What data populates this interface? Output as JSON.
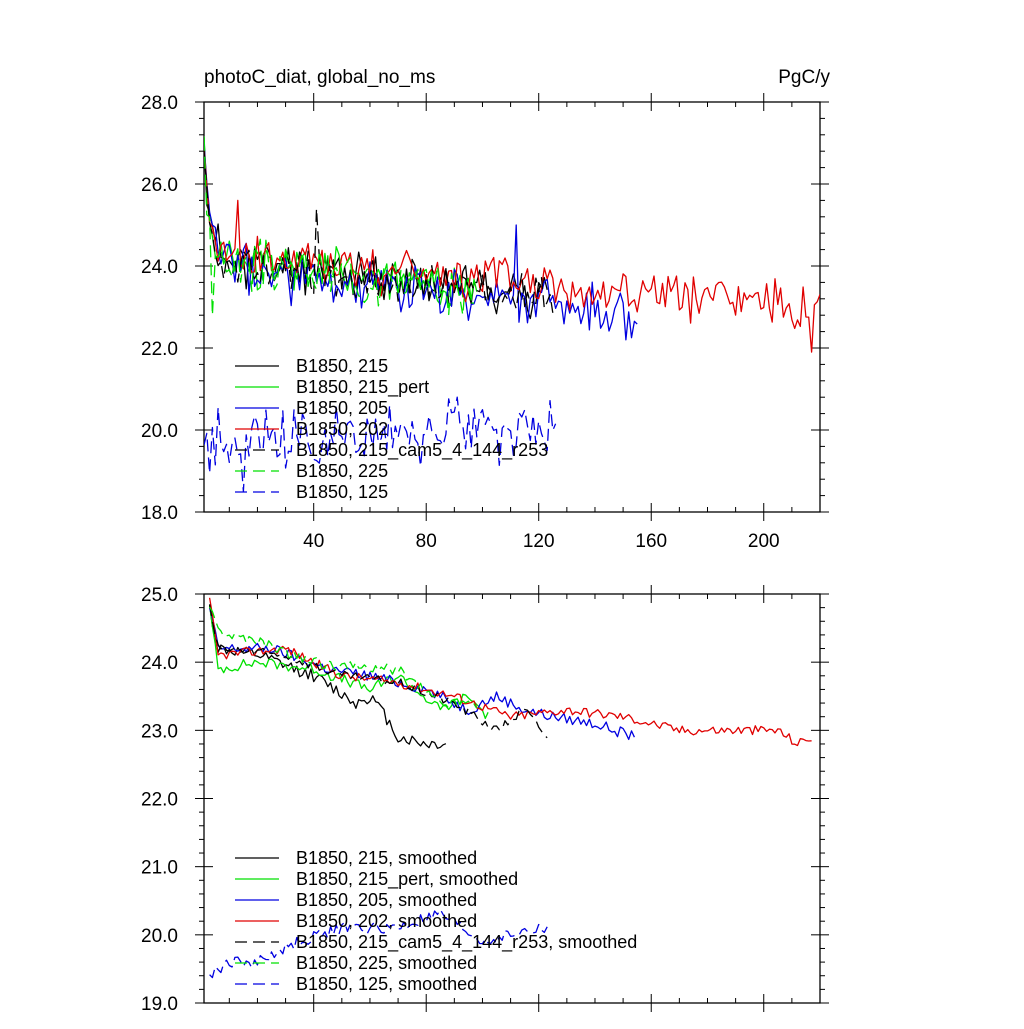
{
  "figure": {
    "title": "photoC_diat, global_no_ms",
    "units": "PgC/y"
  },
  "series_styles": [
    {
      "key": "b215",
      "color": "#000000",
      "dash": "solid"
    },
    {
      "key": "b215pert",
      "color": "#00e000",
      "dash": "solid"
    },
    {
      "key": "b205",
      "color": "#0000e0",
      "dash": "solid"
    },
    {
      "key": "b202",
      "color": "#e00000",
      "dash": "solid"
    },
    {
      "key": "b215cam",
      "color": "#000000",
      "dash": "dashed"
    },
    {
      "key": "b225",
      "color": "#00e000",
      "dash": "dashed"
    },
    {
      "key": "b125",
      "color": "#0000e0",
      "dash": "dashed"
    }
  ],
  "chart_data": [
    {
      "type": "line",
      "title": "photoC_diat, global_no_ms",
      "units": "PgC/y",
      "xlim": [
        1,
        220
      ],
      "ylim": [
        18.0,
        28.0
      ],
      "xticks": [
        40,
        80,
        120,
        160,
        200
      ],
      "xtick_labels": [
        "40",
        "80",
        "120",
        "160",
        "200"
      ],
      "yticks": [
        18.0,
        20.0,
        22.0,
        24.0,
        26.0,
        28.0
      ],
      "ytick_labels": [
        "18.0",
        "20.0",
        "22.0",
        "24.0",
        "26.0",
        "28.0"
      ],
      "series": [
        {
          "name": "B1850, 215",
          "key": "b215",
          "color": "#000000",
          "dash": "solid",
          "kind": "annual",
          "x_range": [
            1,
            123
          ],
          "start": 27.0,
          "plateau": 24.2,
          "end": 23.3,
          "decay": 2.2,
          "noise": 0.45,
          "seed": 11
        },
        {
          "name": "B1850, 215_pert",
          "key": "b215pert",
          "color": "#00e000",
          "dash": "solid",
          "kind": "annual",
          "x_range": [
            1,
            98
          ],
          "start": 26.6,
          "plateau": 24.1,
          "end": 23.6,
          "decay": 2.0,
          "noise": 0.45,
          "seed": 23
        },
        {
          "name": "B1850, 205",
          "key": "b205",
          "color": "#0000e0",
          "dash": "solid",
          "kind": "annual",
          "x_range": [
            1,
            155
          ],
          "start": 26.5,
          "plateau": 24.0,
          "end": 22.9,
          "decay": 2.3,
          "noise": 0.5,
          "seed": 37,
          "spikes": [
            [
              112,
              25.0
            ],
            [
              151,
              22.2
            ]
          ]
        },
        {
          "name": "B1850, 202",
          "key": "b202",
          "color": "#e00000",
          "dash": "solid",
          "kind": "annual",
          "x_range": [
            1,
            220
          ],
          "start": 26.8,
          "plateau": 24.3,
          "end": 22.9,
          "decay": 2.1,
          "noise": 0.45,
          "seed": 41,
          "spikes": [
            [
              13,
              25.6
            ],
            [
              217,
              21.9
            ]
          ]
        },
        {
          "name": "B1850, 215_cam5_4_144_r253",
          "key": "b215cam",
          "color": "#000000",
          "dash": "dashed",
          "kind": "annual",
          "x_range": [
            1,
            125
          ],
          "start": 27.0,
          "plateau": 24.1,
          "end": 23.2,
          "decay": 2.0,
          "noise": 0.4,
          "seed": 53,
          "spikes": [
            [
              41,
              25.4
            ]
          ]
        },
        {
          "name": "B1850, 225",
          "key": "b225",
          "color": "#00e000",
          "dash": "dashed",
          "kind": "annual",
          "x_range": [
            1,
            97
          ],
          "start": 26.7,
          "plateau": 24.2,
          "end": 23.4,
          "decay": 2.0,
          "noise": 0.45,
          "seed": 67,
          "spikes": [
            [
              4,
              22.8
            ]
          ]
        },
        {
          "name": "B1850, 125",
          "key": "b125",
          "color": "#0000e0",
          "dash": "dashed",
          "kind": "annual",
          "x_range": [
            1,
            126
          ],
          "start": 19.5,
          "plateau": 19.7,
          "end": 20.1,
          "decay": 1.0,
          "noise": 0.6,
          "seed": 79,
          "spikes": [
            [
              15,
              18.5
            ]
          ]
        }
      ]
    },
    {
      "type": "line",
      "title": "",
      "units": "PgC/y",
      "xlim": [
        1,
        220
      ],
      "ylim": [
        19.0,
        25.0
      ],
      "xticks": [
        40,
        80,
        120,
        160,
        200
      ],
      "xtick_labels": [
        "",
        "",
        "",
        "",
        ""
      ],
      "yticks": [
        19.0,
        20.0,
        21.0,
        22.0,
        23.0,
        24.0,
        25.0
      ],
      "ytick_labels": [
        "19.0",
        "20.0",
        "21.0",
        "22.0",
        "23.0",
        "24.0",
        "25.0"
      ],
      "series": [
        {
          "name": "B1850, 215, smoothed",
          "key": "b215",
          "color": "#000000",
          "dash": "solid",
          "kind": "smoothed",
          "x_range": [
            3,
            87
          ],
          "start": 24.8,
          "plateau": 24.1,
          "end": 22.8,
          "decay": 2.0,
          "noise": 0.09,
          "seed": 12,
          "waypoints": [
            [
              3,
              24.8
            ],
            [
              6,
              24.2
            ],
            [
              20,
              24.1
            ],
            [
              40,
              23.8
            ],
            [
              55,
              23.4
            ],
            [
              60,
              23.5
            ],
            [
              64,
              23.3
            ],
            [
              70,
              22.9
            ],
            [
              80,
              22.8
            ],
            [
              87,
              22.8
            ]
          ]
        },
        {
          "name": "B1850, 215_pert, smoothed",
          "key": "b215pert",
          "color": "#00e000",
          "dash": "solid",
          "kind": "smoothed",
          "x_range": [
            3,
            102
          ],
          "start": 24.8,
          "plateau": 24.0,
          "end": 23.2,
          "decay": 2.0,
          "noise": 0.08,
          "seed": 24,
          "waypoints": [
            [
              3,
              24.8
            ],
            [
              6,
              23.9
            ],
            [
              20,
              24.0
            ],
            [
              40,
              23.9
            ],
            [
              60,
              23.6
            ],
            [
              70,
              23.8
            ],
            [
              85,
              23.3
            ],
            [
              95,
              23.5
            ],
            [
              102,
              23.2
            ]
          ]
        },
        {
          "name": "B1850, 205, smoothed",
          "key": "b205",
          "color": "#0000e0",
          "dash": "solid",
          "kind": "smoothed",
          "x_range": [
            3,
            154
          ],
          "start": 24.8,
          "plateau": 24.2,
          "end": 22.9,
          "decay": 2.0,
          "noise": 0.08,
          "seed": 38,
          "waypoints": [
            [
              3,
              24.8
            ],
            [
              6,
              24.2
            ],
            [
              25,
              24.2
            ],
            [
              45,
              23.9
            ],
            [
              60,
              23.8
            ],
            [
              80,
              23.6
            ],
            [
              95,
              23.3
            ],
            [
              105,
              23.5
            ],
            [
              115,
              23.3
            ],
            [
              125,
              23.2
            ],
            [
              140,
              23.1
            ],
            [
              154,
              22.9
            ]
          ]
        },
        {
          "name": "B1850, 202, smoothed",
          "key": "b202",
          "color": "#e00000",
          "dash": "solid",
          "kind": "smoothed",
          "x_range": [
            3,
            217
          ],
          "start": 24.9,
          "plateau": 24.2,
          "end": 22.9,
          "decay": 2.0,
          "noise": 0.07,
          "seed": 42,
          "waypoints": [
            [
              3,
              24.9
            ],
            [
              6,
              24.1
            ],
            [
              30,
              24.2
            ],
            [
              50,
              23.8
            ],
            [
              70,
              23.7
            ],
            [
              90,
              23.5
            ],
            [
              110,
              23.2
            ],
            [
              130,
              23.3
            ],
            [
              150,
              23.2
            ],
            [
              170,
              23.0
            ],
            [
              190,
              23.0
            ],
            [
              205,
              23.0
            ],
            [
              212,
              22.8
            ],
            [
              217,
              22.9
            ]
          ]
        },
        {
          "name": "B1850, 215_cam5_4_144_r253, smoothed",
          "key": "b215cam",
          "color": "#000000",
          "dash": "dashed",
          "kind": "smoothed",
          "x_range": [
            3,
            123
          ],
          "start": 24.8,
          "plateau": 24.1,
          "end": 22.9,
          "decay": 2.0,
          "noise": 0.07,
          "seed": 54,
          "waypoints": [
            [
              3,
              24.8
            ],
            [
              6,
              24.2
            ],
            [
              30,
              24.1
            ],
            [
              50,
              23.8
            ],
            [
              70,
              23.7
            ],
            [
              90,
              23.4
            ],
            [
              105,
              23.0
            ],
            [
              115,
              23.3
            ],
            [
              123,
              22.9
            ]
          ]
        },
        {
          "name": "B1850, 225, smoothed",
          "key": "b225",
          "color": "#00e000",
          "dash": "dashed",
          "kind": "smoothed",
          "x_range": [
            3,
            98
          ],
          "start": 24.8,
          "plateau": 24.3,
          "end": 23.4,
          "decay": 2.0,
          "noise": 0.08,
          "seed": 68,
          "waypoints": [
            [
              3,
              24.8
            ],
            [
              8,
              24.4
            ],
            [
              20,
              24.3
            ],
            [
              40,
              24.0
            ],
            [
              60,
              23.9
            ],
            [
              70,
              23.9
            ],
            [
              85,
              23.4
            ],
            [
              98,
              23.4
            ]
          ]
        },
        {
          "name": "B1850, 125, smoothed",
          "key": "b125",
          "color": "#0000e0",
          "dash": "dashed",
          "kind": "smoothed",
          "x_range": [
            3,
            123
          ],
          "start": 19.4,
          "plateau": 19.8,
          "end": 20.1,
          "decay": 1.0,
          "noise": 0.09,
          "seed": 80,
          "waypoints": [
            [
              3,
              19.4
            ],
            [
              10,
              19.6
            ],
            [
              20,
              19.6
            ],
            [
              35,
              19.9
            ],
            [
              50,
              20.1
            ],
            [
              70,
              20.1
            ],
            [
              85,
              20.3
            ],
            [
              100,
              19.9
            ],
            [
              110,
              20.0
            ],
            [
              123,
              20.1
            ]
          ]
        }
      ]
    }
  ]
}
